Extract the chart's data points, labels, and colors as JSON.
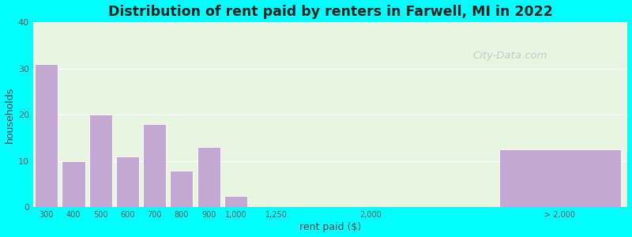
{
  "title": "Distribution of rent paid by renters in Farwell, MI in 2022",
  "xlabel": "rent paid ($)",
  "ylabel": "households",
  "bar_color": "#C4A8D4",
  "background_outer": "#00FFFF",
  "background_inner_top": "#e8f5e0",
  "background_inner_bottom": "#f0f8f0",
  "ylim": [
    0,
    40
  ],
  "yticks": [
    0,
    10,
    20,
    30,
    40
  ],
  "watermark": "City-Data.com",
  "tick_positions": [
    0,
    1,
    2,
    3,
    4,
    5,
    6,
    7,
    8.5,
    12,
    19
  ],
  "tick_labels": [
    "300",
    "400",
    "500",
    "600",
    "700",
    "800",
    "900",
    "1,000",
    "1,250",
    "2,000",
    "> 2,000"
  ],
  "bar_centers": [
    0,
    1,
    2,
    3,
    4,
    5,
    6,
    7,
    8.5,
    19
  ],
  "bar_heights": [
    31,
    10,
    20,
    11,
    18,
    8,
    13,
    2.5,
    0,
    12.5
  ],
  "bar_widths": [
    0.85,
    0.85,
    0.85,
    0.85,
    0.85,
    0.85,
    0.85,
    0.85,
    1.2,
    4.5
  ],
  "xlim": [
    -0.5,
    21.5
  ]
}
